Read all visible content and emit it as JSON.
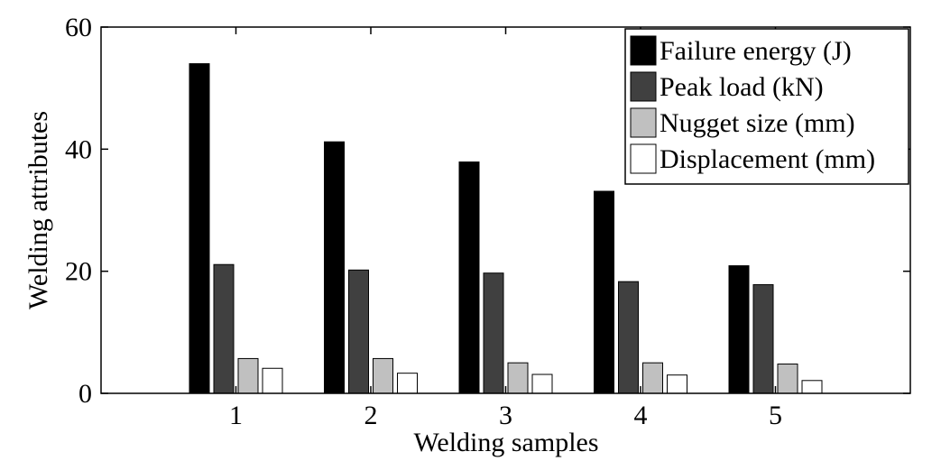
{
  "chart_data": {
    "type": "bar",
    "categories": [
      "1",
      "2",
      "3",
      "4",
      "5"
    ],
    "series": [
      {
        "name": "Failure energy (J)",
        "values": [
          54.0,
          41.2,
          37.9,
          33.1,
          20.9
        ],
        "color": "#000000"
      },
      {
        "name": "Peak load (kN)",
        "values": [
          21.1,
          20.2,
          19.7,
          18.3,
          17.8
        ],
        "color": "#404040"
      },
      {
        "name": "Nugget size (mm)",
        "values": [
          5.7,
          5.7,
          5.0,
          5.0,
          4.8
        ],
        "color": "#c0c0c0"
      },
      {
        "name": "Displacement (mm)",
        "values": [
          4.1,
          3.3,
          3.1,
          3.0,
          2.1
        ],
        "color": "#ffffff"
      }
    ],
    "xlabel": "Welding samples",
    "ylabel": "Welding attributes",
    "ylim": [
      0,
      60
    ],
    "yticks": [
      "0",
      "20",
      "40",
      "60"
    ],
    "grid": false,
    "legend_position": "top-right"
  }
}
